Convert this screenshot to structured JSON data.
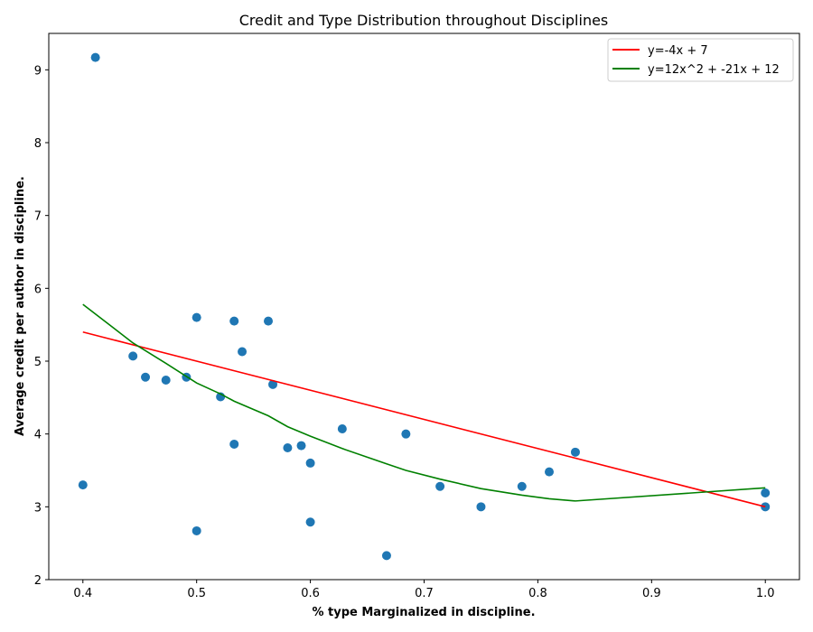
{
  "chart_data": {
    "type": "scatter",
    "title": "Credit and Type Distribution throughout Disciplines",
    "xlabel": "% type Marginalized in discipline.",
    "ylabel": "Average credit per author in discipline.",
    "xlim": [
      0.37,
      1.03
    ],
    "ylim": [
      2.0,
      9.5
    ],
    "xticks": [
      0.4,
      0.5,
      0.6,
      0.7,
      0.8,
      0.9,
      1.0
    ],
    "xtick_labels": [
      "0.4",
      "0.5",
      "0.6",
      "0.7",
      "0.8",
      "0.9",
      "1.0"
    ],
    "yticks": [
      2,
      3,
      4,
      5,
      6,
      7,
      8,
      9
    ],
    "ytick_labels": [
      "2",
      "3",
      "4",
      "5",
      "6",
      "7",
      "8",
      "9"
    ],
    "grid": false,
    "legend_position": "top-right",
    "points": {
      "color": "#1f77b4",
      "x": [
        0.4,
        0.411,
        0.444,
        0.455,
        0.473,
        0.491,
        0.5,
        0.5,
        0.521,
        0.533,
        0.533,
        0.54,
        0.563,
        0.567,
        0.58,
        0.592,
        0.6,
        0.6,
        0.628,
        0.667,
        0.684,
        0.714,
        0.75,
        0.786,
        0.81,
        0.833,
        1.0,
        1.0
      ],
      "y": [
        3.3,
        9.17,
        5.07,
        4.78,
        4.74,
        4.78,
        5.6,
        2.67,
        4.51,
        5.55,
        3.86,
        5.13,
        5.55,
        4.68,
        3.81,
        3.84,
        3.6,
        2.79,
        4.07,
        2.33,
        4.0,
        3.28,
        3.0,
        3.28,
        3.48,
        3.75,
        3.19,
        3.0
      ]
    },
    "series": [
      {
        "name": "y=-4x + 7",
        "color": "#ff0000",
        "kind": "linear",
        "coefficients": [
          0,
          -4,
          7
        ],
        "x_range": [
          0.4,
          1.0
        ]
      },
      {
        "name": "y=12x^2 + -21x + 12",
        "color": "#008000",
        "kind": "curve",
        "x": [
          0.4,
          0.444,
          0.473,
          0.5,
          0.521,
          0.533,
          0.563,
          0.58,
          0.6,
          0.628,
          0.667,
          0.684,
          0.714,
          0.75,
          0.786,
          0.81,
          0.833,
          1.0
        ],
        "y": [
          5.78,
          5.25,
          4.97,
          4.7,
          4.55,
          4.45,
          4.25,
          4.1,
          3.97,
          3.8,
          3.59,
          3.5,
          3.38,
          3.25,
          3.16,
          3.11,
          3.08,
          3.26
        ]
      }
    ]
  }
}
